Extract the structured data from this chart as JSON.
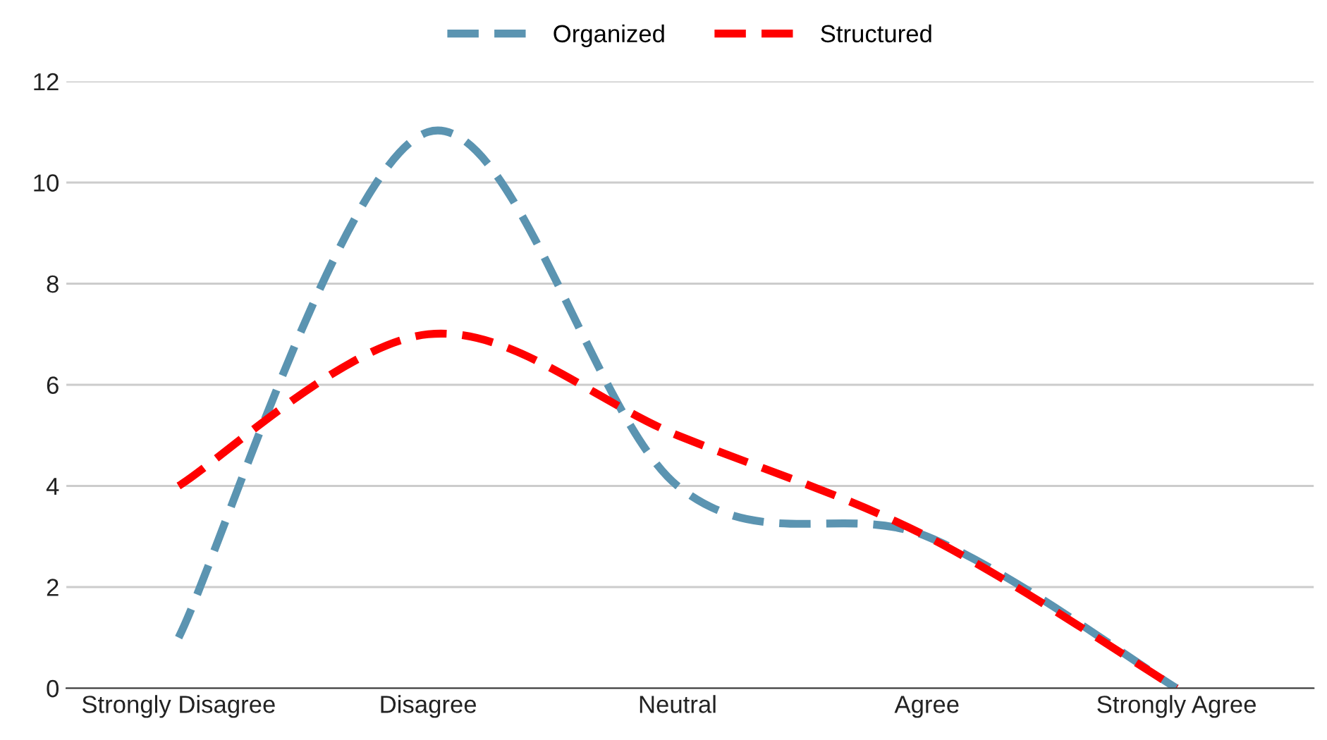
{
  "chart_data": {
    "type": "line",
    "categories": [
      "Strongly Disagree",
      "Disagree",
      "Neutral",
      "Agree",
      "Strongly Agree"
    ],
    "series": [
      {
        "name": "Organized",
        "color": "#5b94b1",
        "values": [
          1,
          11,
          4,
          3,
          0
        ]
      },
      {
        "name": "Structured",
        "color": "#ff0000",
        "values": [
          4,
          7,
          5,
          3,
          0
        ]
      }
    ],
    "ylim": [
      0,
      12
    ],
    "yticks": [
      0,
      2,
      4,
      6,
      8,
      10,
      12
    ],
    "grid": "y",
    "legend": "top",
    "line_style": "dashed",
    "marker": "none"
  }
}
